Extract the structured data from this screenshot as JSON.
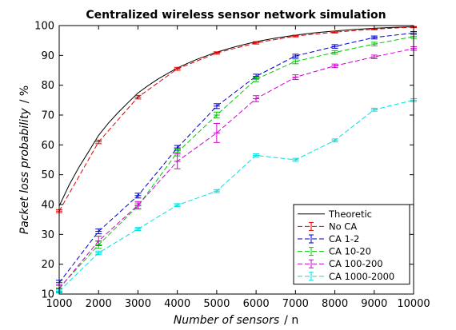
{
  "chart_data": {
    "type": "line",
    "title": "Centralized wireless sensor network simulation",
    "xlabel": "Number of sensors",
    "xlabel_unit": "n",
    "ylabel": "Packet loss probability",
    "ylabel_unit": "%",
    "xlim": [
      1000,
      10000
    ],
    "ylim": [
      10,
      100
    ],
    "xticks": [
      1000,
      2000,
      3000,
      4000,
      5000,
      6000,
      7000,
      8000,
      9000,
      10000
    ],
    "yticks": [
      10,
      20,
      30,
      40,
      50,
      60,
      70,
      80,
      90,
      100
    ],
    "grid": false,
    "legend_position": "bottom-right",
    "x": [
      1000,
      2000,
      3000,
      4000,
      5000,
      6000,
      7000,
      8000,
      9000,
      10000
    ],
    "theoretic": {
      "name": "Theoretic",
      "color": "#000000",
      "x": [
        1000,
        1250,
        1500,
        1750,
        2000,
        2250,
        2500,
        2750,
        3000,
        3250,
        3500,
        3750,
        4000,
        4250,
        4500,
        4750,
        5000,
        5500,
        6000,
        6500,
        7000,
        7500,
        8000,
        8500,
        9000,
        9500,
        10000
      ],
      "values": [
        39.5,
        46.5,
        52.5,
        57.8,
        63.2,
        67.3,
        70.9,
        74.2,
        77.4,
        79.8,
        82.0,
        83.9,
        85.8,
        87.3,
        88.7,
        89.9,
        91.1,
        93.0,
        94.6,
        95.8,
        96.8,
        97.6,
        98.2,
        98.7,
        99.1,
        99.4,
        99.6
      ]
    },
    "series": [
      {
        "name": "No CA",
        "color": "#e00000",
        "values": [
          37.8,
          61.0,
          76.0,
          85.5,
          90.8,
          94.2,
          96.5,
          97.8,
          98.8,
          99.5
        ],
        "errors": [
          0.5,
          0.6,
          0.6,
          0.5,
          0.4,
          0.4,
          0.3,
          0.3,
          0.2,
          0.2
        ]
      },
      {
        "name": "CA 1-2",
        "color": "#0000c8",
        "values": [
          13.8,
          31.0,
          43.0,
          59.0,
          73.0,
          83.0,
          89.8,
          93.0,
          96.0,
          97.5
        ],
        "errors": [
          0.8,
          0.8,
          0.8,
          0.8,
          0.8,
          0.7,
          0.6,
          0.6,
          0.5,
          0.5
        ]
      },
      {
        "name": "CA 10-20",
        "color": "#00c800",
        "values": [
          12.0,
          26.5,
          39.5,
          57.5,
          70.0,
          82.0,
          88.0,
          91.0,
          93.8,
          96.3
        ],
        "errors": [
          1.0,
          1.2,
          1.0,
          1.2,
          1.0,
          0.8,
          0.8,
          0.6,
          0.6,
          0.6
        ]
      },
      {
        "name": "CA 100-200",
        "color": "#d200d2",
        "values": [
          11.8,
          27.8,
          39.8,
          54.5,
          64.0,
          75.5,
          82.7,
          86.5,
          89.5,
          92.3
        ],
        "errors": [
          1.2,
          1.6,
          1.2,
          2.5,
          3.2,
          1.0,
          0.8,
          0.6,
          0.6,
          0.6
        ]
      },
      {
        "name": "CA 1000-2000",
        "color": "#00e0e0",
        "values": [
          11.0,
          23.8,
          31.8,
          39.8,
          44.5,
          56.5,
          55.0,
          61.5,
          71.8,
          75.0
        ],
        "errors": [
          0.6,
          0.6,
          0.5,
          0.5,
          0.5,
          0.5,
          0.5,
          0.5,
          0.5,
          0.5
        ]
      }
    ]
  }
}
